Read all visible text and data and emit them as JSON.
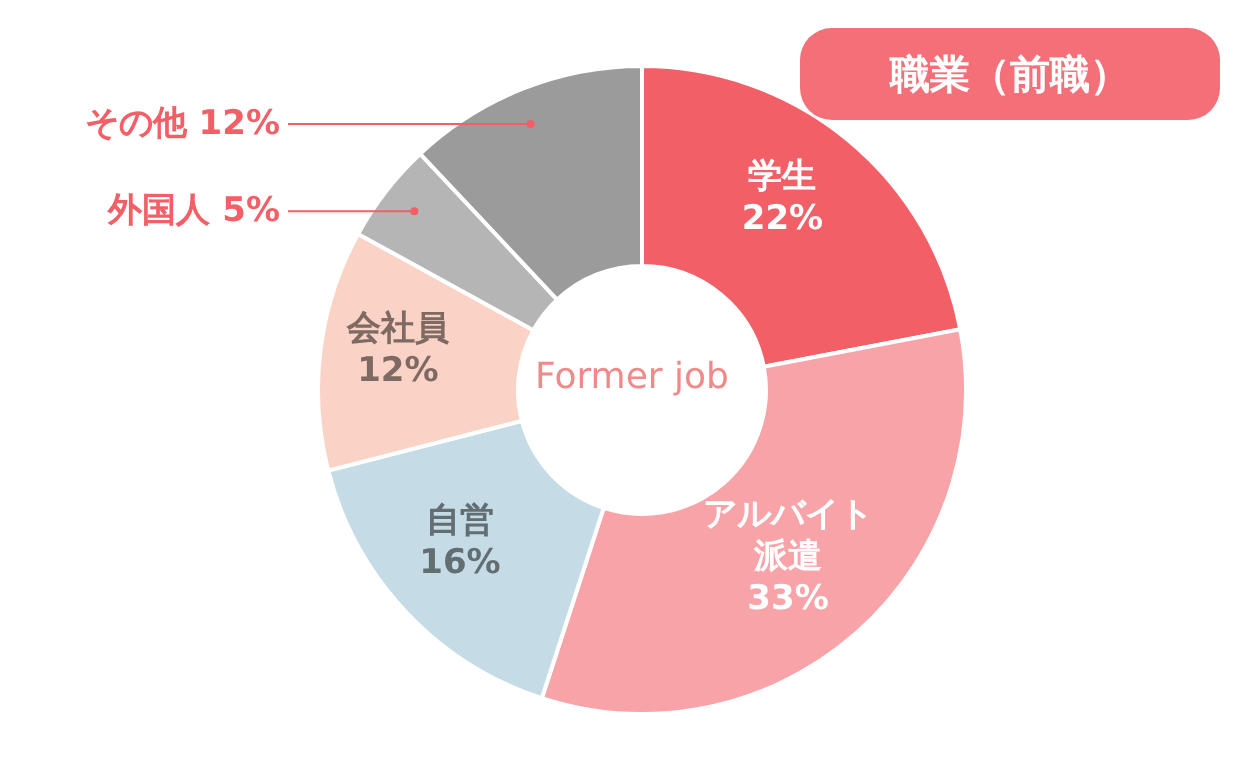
{
  "chart_data": {
    "type": "donut",
    "title": "職業（前職）",
    "categories": [
      "学生",
      "アルバイト派遣",
      "自営",
      "会社員",
      "外国人",
      "その他"
    ],
    "values": [
      22,
      33,
      16,
      12,
      5,
      12
    ],
    "colors": [
      "#f25f66",
      "#f7a3a8",
      "#c5dce6",
      "#fbd3c6",
      "#b5b5b5",
      "#9b9b9b"
    ],
    "value_labels": [
      "22%",
      "33%",
      "16%",
      "12%",
      "5%",
      "12%"
    ],
    "annotations": [
      "Former job"
    ],
    "legend": false
  }
}
